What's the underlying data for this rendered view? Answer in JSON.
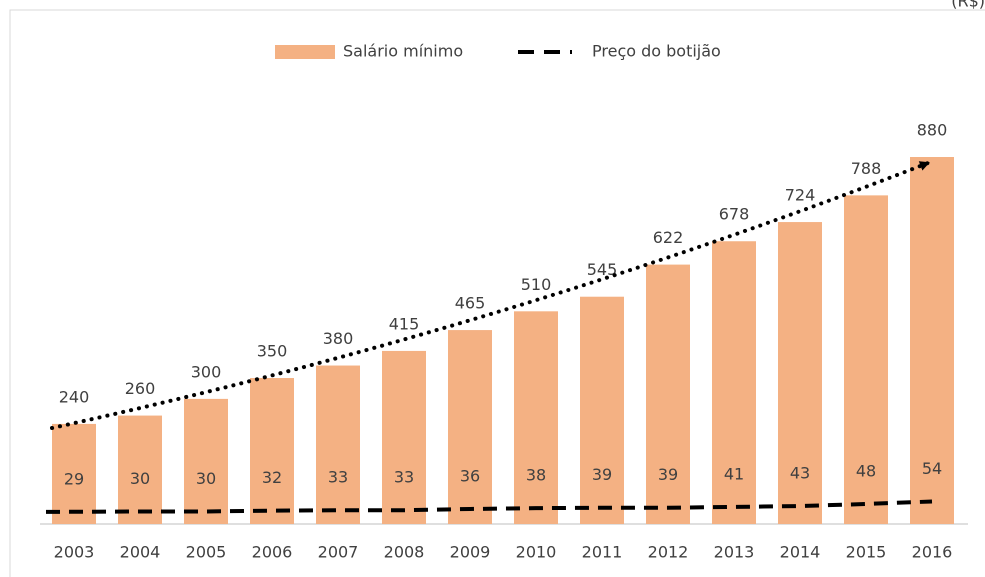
{
  "chart_data": {
    "type": "bar",
    "unit_label": "(R$)",
    "categories": [
      "2003",
      "2004",
      "2005",
      "2006",
      "2007",
      "2008",
      "2009",
      "2010",
      "2011",
      "2012",
      "2013",
      "2014",
      "2015",
      "2016"
    ],
    "series": [
      {
        "name": "Salário mínimo",
        "type": "bar",
        "color": "#f4b183",
        "values": [
          240,
          260,
          300,
          350,
          380,
          415,
          465,
          510,
          545,
          622,
          678,
          724,
          788,
          880
        ]
      },
      {
        "name": "Preço do botijão",
        "type": "line",
        "color": "#000000",
        "dashed": true,
        "values": [
          29,
          30,
          30,
          32,
          33,
          33,
          36,
          38,
          39,
          39,
          41,
          43,
          48,
          54
        ]
      }
    ],
    "legend": "top"
  }
}
